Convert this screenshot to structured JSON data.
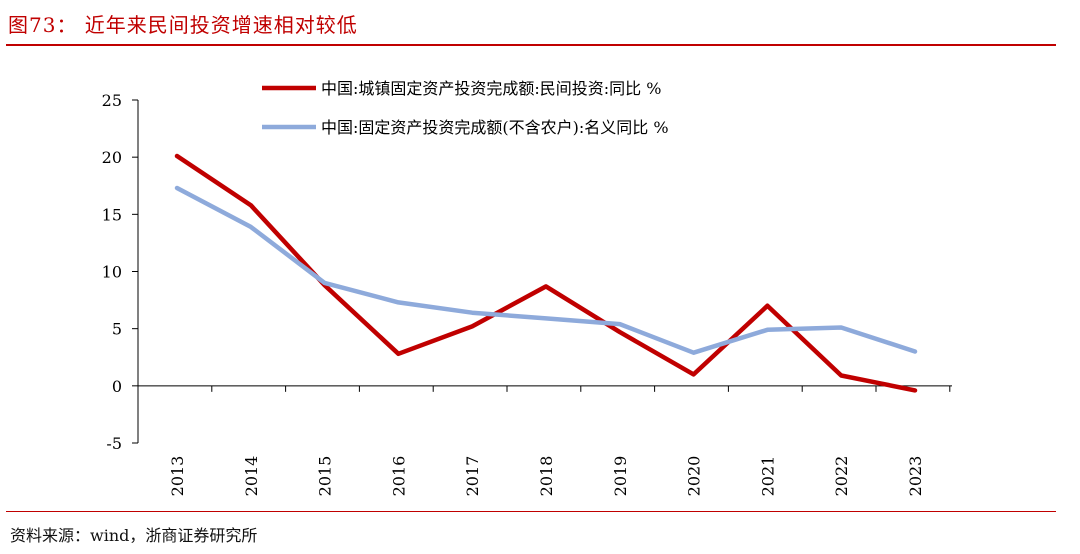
{
  "header": {
    "title": "图73：  近年来民间投资增速相对较低"
  },
  "footer": {
    "source": "资料来源：wind，浙商证券研究所"
  },
  "chart_data": {
    "type": "line",
    "title": "",
    "xlabel": "",
    "ylabel": "",
    "categories": [
      "2013",
      "2014",
      "2015",
      "2016",
      "2017",
      "2018",
      "2019",
      "2020",
      "2021",
      "2022",
      "2023"
    ],
    "ylim": [
      -5,
      25
    ],
    "yticks": [
      -5,
      0,
      5,
      10,
      15,
      20,
      25
    ],
    "grid": false,
    "legend_position": "top",
    "series": [
      {
        "name": "中国:城镇固定资产投资完成额:民间投资:同比 %",
        "color": "#c00000",
        "values": [
          20.1,
          15.8,
          8.8,
          2.8,
          5.2,
          8.7,
          4.7,
          1.0,
          7.0,
          0.9,
          -0.4
        ]
      },
      {
        "name": "中国:固定资产投资完成额(不含农户):名义同比 %",
        "color": "#8eaadb",
        "values": [
          17.3,
          13.9,
          9.0,
          7.3,
          6.4,
          5.9,
          5.4,
          2.9,
          4.9,
          5.1,
          3.0
        ]
      }
    ]
  }
}
